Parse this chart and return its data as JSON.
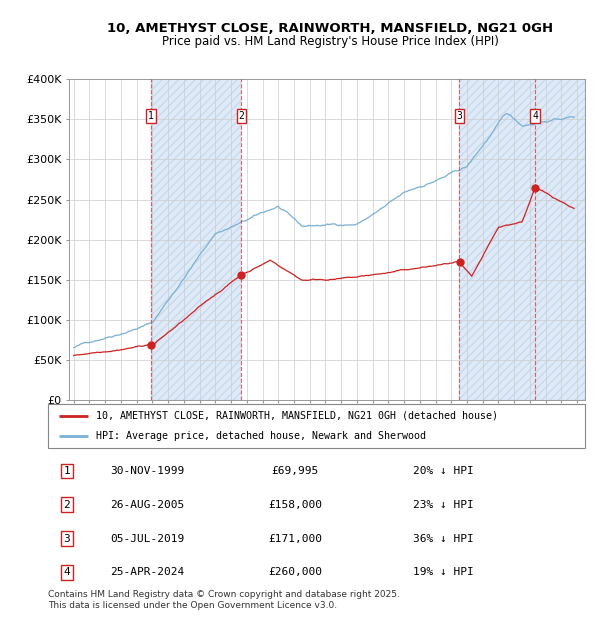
{
  "title": "10, AMETHYST CLOSE, RAINWORTH, MANSFIELD, NG21 0GH",
  "subtitle": "Price paid vs. HM Land Registry's House Price Index (HPI)",
  "ylim": [
    0,
    400000
  ],
  "xlim_start": 1994.7,
  "xlim_end": 2027.5,
  "yticks": [
    0,
    50000,
    100000,
    150000,
    200000,
    250000,
    300000,
    350000,
    400000
  ],
  "ytick_labels": [
    "£0",
    "£50K",
    "£100K",
    "£150K",
    "£200K",
    "£250K",
    "£300K",
    "£350K",
    "£400K"
  ],
  "transactions": [
    {
      "num": 1,
      "date": "30-NOV-1999",
      "year": 1999.92,
      "price": 69995,
      "pct": "20%",
      "label": "30-NOV-1999",
      "price_str": "£69,995"
    },
    {
      "num": 2,
      "date": "26-AUG-2005",
      "year": 2005.65,
      "price": 158000,
      "pct": "23%",
      "label": "26-AUG-2005",
      "price_str": "£158,000"
    },
    {
      "num": 3,
      "date": "05-JUL-2019",
      "year": 2019.51,
      "price": 171000,
      "pct": "36%",
      "label": "05-JUL-2019",
      "price_str": "£171,000"
    },
    {
      "num": 4,
      "date": "25-APR-2024",
      "year": 2024.32,
      "price": 260000,
      "pct": "19%",
      "label": "25-APR-2024",
      "price_str": "£260,000"
    }
  ],
  "red_line_color": "#cc2222",
  "blue_line_color": "#7ab0d4",
  "vline_color": "#cc4444",
  "marker_box_color": "#cc2222",
  "background_color": "#ffffff",
  "grid_color": "#cccccc",
  "shade_color": "#ccddf0",
  "legend_label_red": "10, AMETHYST CLOSE, RAINWORTH, MANSFIELD, NG21 0GH (detached house)",
  "legend_label_blue": "HPI: Average price, detached house, Newark and Sherwood",
  "footnote": "Contains HM Land Registry data © Crown copyright and database right 2025.\nThis data is licensed under the Open Government Licence v3.0."
}
